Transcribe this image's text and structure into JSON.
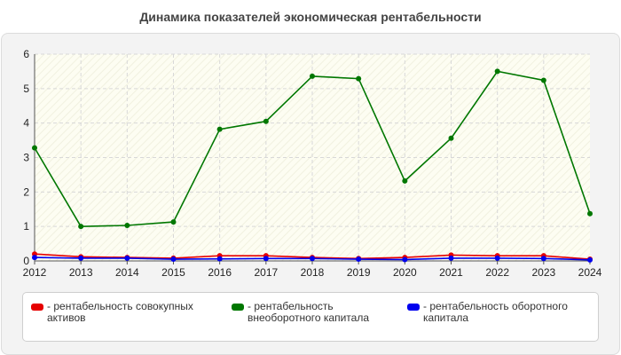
{
  "title": "Динамика показателей экономическая рентабельности",
  "chart_data": {
    "type": "line",
    "title": "Динамика показателей экономическая рентабельности",
    "xlabel": "",
    "ylabel": "",
    "x": [
      "2012",
      "2013",
      "2014",
      "2015",
      "2016",
      "2017",
      "2018",
      "2019",
      "2020",
      "2021",
      "2022",
      "2023",
      "2024"
    ],
    "ylim": [
      0,
      6
    ],
    "yticks": [
      0,
      1,
      2,
      3,
      4,
      5,
      6
    ],
    "grid": true,
    "legend_position": "bottom",
    "series": [
      {
        "name": "рентабельность совокупных активов",
        "color": "#e60000",
        "values": [
          0.2,
          0.12,
          0.1,
          0.08,
          0.15,
          0.15,
          0.1,
          0.07,
          0.1,
          0.17,
          0.15,
          0.15,
          0.05
        ]
      },
      {
        "name": "рентабельность внеоборотного капитала",
        "color": "#007700",
        "values": [
          3.28,
          1.0,
          1.03,
          1.13,
          3.82,
          4.05,
          5.36,
          5.29,
          2.32,
          3.56,
          5.5,
          5.24,
          1.37
        ]
      },
      {
        "name": "рентабельность оборотного капитала",
        "color": "#0000ee",
        "values": [
          0.1,
          0.08,
          0.08,
          0.05,
          0.06,
          0.07,
          0.07,
          0.05,
          0.04,
          0.08,
          0.08,
          0.07,
          0.03
        ]
      }
    ]
  }
}
